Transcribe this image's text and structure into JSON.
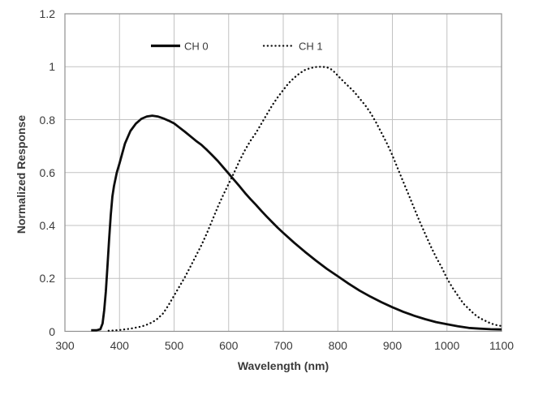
{
  "chart_data": {
    "type": "line",
    "title": "",
    "xlabel": "Wavelength (nm)",
    "ylabel": "Normalized Response",
    "xlim": [
      300,
      1100
    ],
    "ylim": [
      0,
      1.2
    ],
    "x_ticks": [
      300,
      400,
      500,
      600,
      700,
      800,
      900,
      1000,
      1100
    ],
    "y_ticks": [
      0,
      0.2,
      0.4,
      0.6,
      0.8,
      1,
      1.2
    ],
    "y_tick_labels": [
      "0",
      "0.2",
      "0.4",
      "0.6",
      "0.8",
      "1",
      "1.2"
    ],
    "grid": true,
    "legend_position": "top-inside",
    "colors": {
      "background": "#ffffff",
      "grid": "#c2c2c2",
      "axis_border": "#8f8f8f",
      "text": "#3a3a3a",
      "curve": "#0d0d0d"
    },
    "series": [
      {
        "name": "CH 0",
        "style": "solid",
        "color": "#0d0d0d",
        "points": [
          [
            348,
            0.004
          ],
          [
            358,
            0.004
          ],
          [
            365,
            0.008
          ],
          [
            369,
            0.03
          ],
          [
            372,
            0.08
          ],
          [
            375,
            0.15
          ],
          [
            378,
            0.25
          ],
          [
            381,
            0.35
          ],
          [
            384,
            0.44
          ],
          [
            387,
            0.51
          ],
          [
            390,
            0.55
          ],
          [
            395,
            0.6
          ],
          [
            400,
            0.635
          ],
          [
            410,
            0.71
          ],
          [
            420,
            0.757
          ],
          [
            430,
            0.785
          ],
          [
            440,
            0.803
          ],
          [
            450,
            0.812
          ],
          [
            460,
            0.815
          ],
          [
            470,
            0.812
          ],
          [
            480,
            0.805
          ],
          [
            490,
            0.796
          ],
          [
            500,
            0.786
          ],
          [
            510,
            0.77
          ],
          [
            520,
            0.754
          ],
          [
            530,
            0.737
          ],
          [
            540,
            0.72
          ],
          [
            550,
            0.705
          ],
          [
            560,
            0.686
          ],
          [
            570,
            0.665
          ],
          [
            580,
            0.644
          ],
          [
            590,
            0.62
          ],
          [
            600,
            0.596
          ],
          [
            610,
            0.572
          ],
          [
            620,
            0.548
          ],
          [
            630,
            0.523
          ],
          [
            640,
            0.5
          ],
          [
            650,
            0.478
          ],
          [
            660,
            0.455
          ],
          [
            670,
            0.433
          ],
          [
            680,
            0.412
          ],
          [
            690,
            0.391
          ],
          [
            700,
            0.372
          ],
          [
            720,
            0.335
          ],
          [
            740,
            0.3
          ],
          [
            760,
            0.267
          ],
          [
            780,
            0.236
          ],
          [
            800,
            0.208
          ],
          [
            820,
            0.18
          ],
          [
            840,
            0.154
          ],
          [
            860,
            0.131
          ],
          [
            880,
            0.11
          ],
          [
            900,
            0.091
          ],
          [
            920,
            0.074
          ],
          [
            940,
            0.059
          ],
          [
            960,
            0.046
          ],
          [
            980,
            0.035
          ],
          [
            1000,
            0.027
          ],
          [
            1020,
            0.019
          ],
          [
            1040,
            0.013
          ],
          [
            1060,
            0.01
          ],
          [
            1080,
            0.008
          ],
          [
            1100,
            0.007
          ]
        ]
      },
      {
        "name": "CH 1",
        "style": "dotted",
        "color": "#0d0d0d",
        "points": [
          [
            380,
            0.002
          ],
          [
            400,
            0.005
          ],
          [
            420,
            0.01
          ],
          [
            440,
            0.018
          ],
          [
            450,
            0.025
          ],
          [
            460,
            0.034
          ],
          [
            470,
            0.048
          ],
          [
            480,
            0.068
          ],
          [
            490,
            0.1
          ],
          [
            500,
            0.135
          ],
          [
            510,
            0.17
          ],
          [
            520,
            0.205
          ],
          [
            530,
            0.245
          ],
          [
            540,
            0.285
          ],
          [
            550,
            0.325
          ],
          [
            560,
            0.37
          ],
          [
            570,
            0.42
          ],
          [
            580,
            0.47
          ],
          [
            590,
            0.515
          ],
          [
            600,
            0.558
          ],
          [
            610,
            0.6
          ],
          [
            620,
            0.645
          ],
          [
            630,
            0.685
          ],
          [
            640,
            0.72
          ],
          [
            650,
            0.75
          ],
          [
            660,
            0.785
          ],
          [
            670,
            0.82
          ],
          [
            680,
            0.855
          ],
          [
            690,
            0.885
          ],
          [
            700,
            0.912
          ],
          [
            710,
            0.938
          ],
          [
            720,
            0.958
          ],
          [
            730,
            0.975
          ],
          [
            740,
            0.988
          ],
          [
            750,
            0.995
          ],
          [
            760,
            0.999
          ],
          [
            770,
            1.0
          ],
          [
            780,
            0.998
          ],
          [
            790,
            0.988
          ],
          [
            800,
            0.966
          ],
          [
            810,
            0.945
          ],
          [
            820,
            0.925
          ],
          [
            830,
            0.905
          ],
          [
            840,
            0.88
          ],
          [
            850,
            0.855
          ],
          [
            860,
            0.825
          ],
          [
            870,
            0.79
          ],
          [
            880,
            0.75
          ],
          [
            890,
            0.71
          ],
          [
            900,
            0.665
          ],
          [
            910,
            0.615
          ],
          [
            920,
            0.565
          ],
          [
            930,
            0.515
          ],
          [
            940,
            0.465
          ],
          [
            950,
            0.415
          ],
          [
            960,
            0.368
          ],
          [
            970,
            0.322
          ],
          [
            980,
            0.28
          ],
          [
            990,
            0.243
          ],
          [
            1000,
            0.2
          ],
          [
            1010,
            0.165
          ],
          [
            1020,
            0.135
          ],
          [
            1030,
            0.105
          ],
          [
            1040,
            0.085
          ],
          [
            1050,
            0.065
          ],
          [
            1060,
            0.05
          ],
          [
            1070,
            0.04
          ],
          [
            1080,
            0.03
          ],
          [
            1090,
            0.024
          ],
          [
            1100,
            0.02
          ]
        ]
      }
    ]
  }
}
